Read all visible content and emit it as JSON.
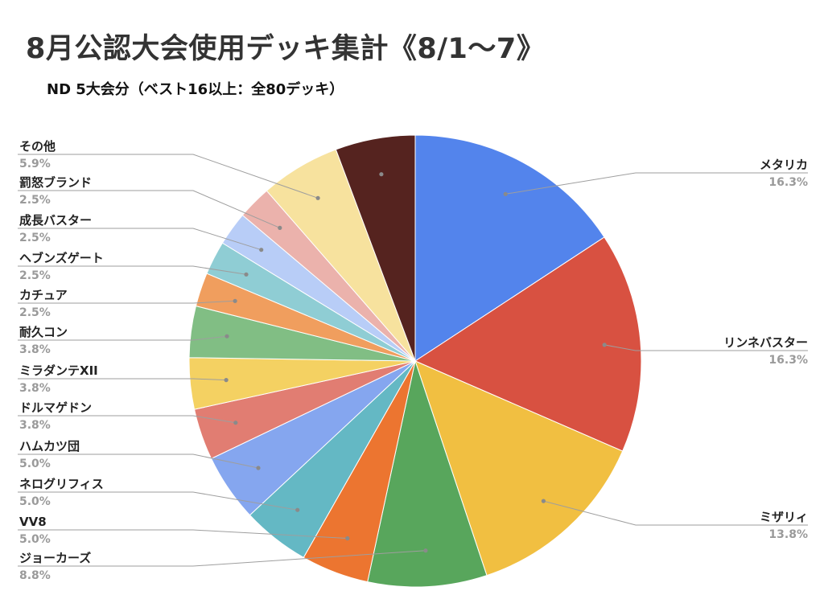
{
  "page": {
    "title": "8月公認大会使用デッキ集計《8/1〜7》",
    "subtitle": "ND 5大会分（ベスト16以上：全80デッキ）"
  },
  "chart_data": {
    "type": "pie",
    "title": "8月公認大会使用デッキ集計《8/1〜7》",
    "subtitle": "ND 5大会分（ベスト16以上：全80デッキ）",
    "unit": "%",
    "start": "12 o'clock, clockwise",
    "slices": [
      {
        "label": "メタリカ",
        "value": 16.3,
        "pct": "16.3%",
        "color": "#5384ec"
      },
      {
        "label": "リンネバスター",
        "value": 16.3,
        "pct": "16.3%",
        "color": "#d85141"
      },
      {
        "label": "ミザリィ",
        "value": 13.8,
        "pct": "13.8%",
        "color": "#f1bf41"
      },
      {
        "label": "ジョーカーズ",
        "value": 8.8,
        "pct": "8.8%",
        "color": "#58a65c"
      },
      {
        "label": "VV8",
        "value": 5.0,
        "pct": "5.0%",
        "color": "#ec7530"
      },
      {
        "label": "ネログリフィス",
        "value": 5.0,
        "pct": "5.0%",
        "color": "#64b8c4"
      },
      {
        "label": "ハムカツ団",
        "value": 5.0,
        "pct": "5.0%",
        "color": "#85a6ef"
      },
      {
        "label": "ドルマゲドン",
        "value": 3.8,
        "pct": "3.8%",
        "color": "#e17d72"
      },
      {
        "label": "ミラダンテXII",
        "value": 3.8,
        "pct": "3.8%",
        "color": "#f4d162"
      },
      {
        "label": "耐久コン",
        "value": 3.8,
        "pct": "3.8%",
        "color": "#81be84"
      },
      {
        "label": "カチュア",
        "value": 2.5,
        "pct": "2.5%",
        "color": "#f09e5e"
      },
      {
        "label": "ヘブンズゲート",
        "value": 2.5,
        "pct": "2.5%",
        "color": "#8fcdd4"
      },
      {
        "label": "成長バスター",
        "value": 2.5,
        "pct": "2.5%",
        "color": "#b8cdf7"
      },
      {
        "label": "罰怒ブランド",
        "value": 2.5,
        "pct": "2.5%",
        "color": "#ebb2ac"
      },
      {
        "label": "その他",
        "value": 5.9,
        "pct": "5.9%",
        "color": "#f7e29e"
      },
      {
        "label": "",
        "value": 5.9,
        "pct": "",
        "color": "#55231f"
      }
    ]
  }
}
